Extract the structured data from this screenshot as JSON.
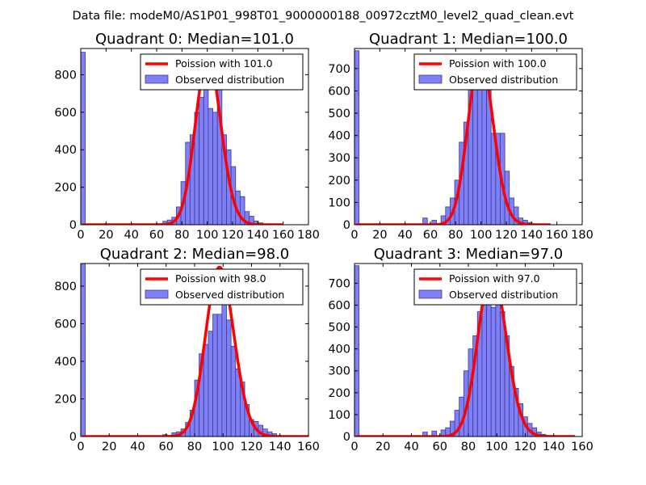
{
  "figure": {
    "suptitle": "Data file: modeM0/AS1P01_998T01_9000000188_00972cztM0_level2_quad_clean.evt"
  },
  "style": {
    "bar_fill": "#7f7ff7",
    "bar_edge": "#3c3c8c",
    "curve_color": "#ff0000",
    "axis_color": "#000000"
  },
  "chart_data": [
    {
      "type": "bar",
      "title": "Quadrant 0: Median=101.0",
      "xlim": [
        0,
        180
      ],
      "ylim": [
        0,
        940
      ],
      "xticks": [
        "0",
        "20",
        "40",
        "60",
        "80",
        "100",
        "120",
        "140",
        "160",
        "180"
      ],
      "yticks": [
        "0",
        "200",
        "400",
        "600",
        "800"
      ],
      "legend": [
        "Poission with 101.0",
        "Observed distribution"
      ],
      "bin_width": 3.6,
      "hist_x": [
        0,
        64.8,
        68.4,
        72,
        75.6,
        79.2,
        82.8,
        86.4,
        90,
        93.6,
        97.2,
        100.8,
        104.4,
        108,
        111.6,
        115.2,
        118.8,
        122.4,
        126,
        129.6,
        133.2,
        136.8,
        140.4,
        144
      ],
      "hist_y": [
        920,
        18,
        25,
        40,
        95,
        230,
        440,
        480,
        600,
        680,
        720,
        620,
        600,
        760,
        480,
        400,
        310,
        180,
        150,
        70,
        45,
        20,
        10,
        5
      ],
      "curve": {
        "lambda": 101,
        "peak": 890,
        "x_range": [
          1,
          160
        ]
      }
    },
    {
      "type": "bar",
      "title": "Quadrant 1: Median=100.0",
      "xlim": [
        0,
        180
      ],
      "ylim": [
        0,
        790
      ],
      "xticks": [
        "0",
        "20",
        "40",
        "60",
        "80",
        "100",
        "120",
        "140",
        "160",
        "180"
      ],
      "yticks": [
        "0",
        "100",
        "200",
        "300",
        "400",
        "500",
        "600",
        "700"
      ],
      "legend": [
        "Poission with 100.0",
        "Observed distribution"
      ],
      "bin_width": 3.6,
      "hist_x": [
        0,
        54,
        61.2,
        68.4,
        72,
        75.6,
        79.2,
        82.8,
        86.4,
        90,
        93.6,
        97.2,
        100.8,
        104.4,
        108,
        111.6,
        115.2,
        118.8,
        122.4,
        126,
        129.6,
        133.2,
        136.8
      ],
      "hist_y": [
        780,
        30,
        20,
        40,
        80,
        120,
        200,
        370,
        460,
        610,
        730,
        700,
        690,
        620,
        410,
        410,
        410,
        240,
        120,
        80,
        30,
        20,
        10
      ],
      "curve": {
        "lambda": 100,
        "peak": 750,
        "x_range": [
          1,
          155
        ]
      }
    },
    {
      "type": "bar",
      "title": "Quadrant 2: Median=98.0",
      "xlim": [
        0,
        160
      ],
      "ylim": [
        0,
        920
      ],
      "xticks": [
        "0",
        "20",
        "40",
        "60",
        "80",
        "100",
        "120",
        "140",
        "160"
      ],
      "yticks": [
        "0",
        "200",
        "400",
        "600",
        "800"
      ],
      "legend": [
        "Poission with 98.0",
        "Observed distribution"
      ],
      "bin_width": 3.2,
      "hist_x": [
        0,
        57.6,
        64,
        67.2,
        70.4,
        73.6,
        76.8,
        80,
        83.2,
        86.4,
        89.6,
        92.8,
        96,
        99.2,
        102.4,
        105.6,
        108.8,
        112,
        115.2,
        118.4,
        121.6,
        124.8,
        128,
        131.2,
        134.4,
        137.6
      ],
      "hist_y": [
        920,
        10,
        20,
        25,
        40,
        75,
        140,
        300,
        440,
        490,
        560,
        650,
        650,
        780,
        620,
        480,
        360,
        290,
        170,
        90,
        80,
        60,
        40,
        25,
        15,
        5
      ],
      "curve": {
        "lambda": 98,
        "peak": 900,
        "x_range": [
          1,
          160
        ]
      }
    },
    {
      "type": "bar",
      "title": "Quadrant 3: Median=97.0",
      "xlim": [
        0,
        160
      ],
      "ylim": [
        0,
        790
      ],
      "xticks": [
        "0",
        "20",
        "40",
        "60",
        "80",
        "100",
        "120",
        "140",
        "160"
      ],
      "yticks": [
        "0",
        "100",
        "200",
        "300",
        "400",
        "500",
        "600",
        "700"
      ],
      "legend": [
        "Poission with 97.0",
        "Observed distribution"
      ],
      "bin_width": 3.2,
      "hist_x": [
        0,
        48,
        54.4,
        60.8,
        64,
        67.2,
        70.4,
        73.6,
        76.8,
        80,
        83.2,
        86.4,
        89.6,
        92.8,
        96,
        99.2,
        102.4,
        105.6,
        108.8,
        112,
        115.2,
        118.4,
        121.6,
        124.8,
        128,
        131.2
      ],
      "hist_y": [
        780,
        20,
        25,
        30,
        40,
        70,
        120,
        180,
        300,
        400,
        460,
        570,
        610,
        700,
        590,
        730,
        570,
        460,
        320,
        220,
        150,
        90,
        60,
        40,
        20,
        10
      ],
      "curve": {
        "lambda": 97,
        "peak": 760,
        "x_range": [
          1,
          155
        ]
      }
    }
  ]
}
